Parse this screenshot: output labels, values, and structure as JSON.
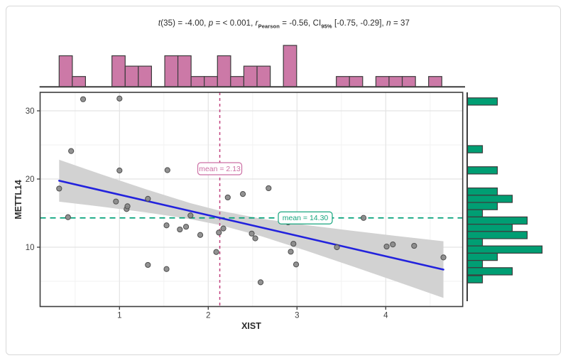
{
  "figure": {
    "background": "#ffffff",
    "card_border_color": "#d8d8d8"
  },
  "title": {
    "plain": "t(35) = -4.00, p = < 0.001, rPearson = -0.56, CI95% [-0.75, -0.29], n = 37",
    "segments": [
      {
        "text": "t",
        "style": "italic"
      },
      {
        "text": "(35) = -4.00, ",
        "style": "plain"
      },
      {
        "text": "p",
        "style": "italic"
      },
      {
        "text": " = < 0.001, ",
        "style": "plain"
      },
      {
        "text": "r",
        "style": "italic"
      },
      {
        "text": "Pearson",
        "style": "sub"
      },
      {
        "text": " = -0.56, CI",
        "style": "plain"
      },
      {
        "text": "95%",
        "style": "sub"
      },
      {
        "text": " [-0.75, -0.29], ",
        "style": "plain"
      },
      {
        "text": "n",
        "style": "italic"
      },
      {
        "text": " = 37",
        "style": "plain"
      }
    ]
  },
  "chart_data": {
    "type": "scatter",
    "subtype": "scatter_with_regression_and_marginal_histograms",
    "xlabel": "XIST",
    "ylabel": "METTL14",
    "x_ticks": [
      1,
      2,
      3,
      4
    ],
    "y_ticks": [
      10,
      20,
      30
    ],
    "xlim": [
      0.11,
      4.87
    ],
    "ylim": [
      1.3,
      32.7
    ],
    "n": 37,
    "grid": true,
    "point_style": {
      "fill": "#868686",
      "stroke": "#4e4e4e",
      "radius": 3.6,
      "opacity": 0.9
    },
    "points": [
      [
        0.32,
        18.6
      ],
      [
        0.42,
        14.4
      ],
      [
        0.455,
        24.1
      ],
      [
        0.59,
        31.7
      ],
      [
        0.96,
        16.7
      ],
      [
        1.0,
        31.8
      ],
      [
        1.0,
        21.25
      ],
      [
        1.08,
        15.6
      ],
      [
        1.09,
        16.0
      ],
      [
        1.32,
        17.1
      ],
      [
        1.32,
        7.4
      ],
      [
        1.53,
        13.2
      ],
      [
        1.53,
        6.8
      ],
      [
        1.54,
        21.3
      ],
      [
        1.68,
        12.6
      ],
      [
        1.75,
        13.0
      ],
      [
        1.8,
        14.65
      ],
      [
        1.91,
        11.8
      ],
      [
        2.09,
        9.3
      ],
      [
        2.12,
        12.15
      ],
      [
        2.17,
        12.75
      ],
      [
        2.22,
        17.3
      ],
      [
        2.39,
        17.8
      ],
      [
        2.49,
        12.0
      ],
      [
        2.53,
        11.3
      ],
      [
        2.59,
        4.86
      ],
      [
        2.68,
        18.65
      ],
      [
        2.9,
        13.65
      ],
      [
        2.93,
        9.34
      ],
      [
        2.96,
        10.5
      ],
      [
        2.99,
        7.47
      ],
      [
        3.45,
        10.0
      ],
      [
        3.75,
        14.3
      ],
      [
        4.01,
        10.1
      ],
      [
        4.08,
        10.4
      ],
      [
        4.32,
        10.2
      ],
      [
        4.65,
        8.5
      ]
    ],
    "regression": {
      "x1": 0.32,
      "y1": 19.75,
      "x2": 4.65,
      "y2": 6.72,
      "color": "#2222dd",
      "width": 2.6
    },
    "confidence_band": {
      "color": "#d2d2d2",
      "points": [
        [
          0.32,
          16.68,
          22.82
        ],
        [
          0.8,
          15.94,
          20.66
        ],
        [
          1.3,
          15.11,
          18.49
        ],
        [
          1.8,
          14.12,
          16.46
        ],
        [
          2.13,
          13.25,
          15.35
        ],
        [
          2.6,
          11.6,
          14.18
        ],
        [
          3.1,
          9.51,
          13.25
        ],
        [
          3.6,
          7.31,
          12.45
        ],
        [
          4.1,
          5.06,
          11.68
        ],
        [
          4.65,
          2.57,
          10.87
        ]
      ]
    },
    "mean_x_line": {
      "value": 2.13,
      "label": "mean = 2.13",
      "line_color": "#c2417e",
      "label_color": "#cc6fa4"
    },
    "mean_y_line": {
      "value": 14.3,
      "label": "mean = 14.30",
      "line_color": "#00a077",
      "label_color": "#17a57e"
    },
    "x_marginal_histogram": {
      "fill": "#CC79A7",
      "stroke": "#3c3c3c",
      "binwidth": 0.1488,
      "bars": [
        [
          0.32,
          3
        ],
        [
          0.468,
          1
        ],
        [
          0.915,
          3
        ],
        [
          1.064,
          2
        ],
        [
          1.212,
          2
        ],
        [
          1.51,
          3
        ],
        [
          1.658,
          3
        ],
        [
          1.807,
          1
        ],
        [
          1.955,
          1
        ],
        [
          2.104,
          3
        ],
        [
          2.252,
          1
        ],
        [
          2.401,
          2
        ],
        [
          2.55,
          2
        ],
        [
          2.847,
          4
        ],
        [
          3.443,
          1
        ],
        [
          3.591,
          1
        ],
        [
          3.889,
          1
        ],
        [
          4.037,
          1
        ],
        [
          4.186,
          1
        ],
        [
          4.483,
          1
        ]
      ]
    },
    "y_marginal_histogram": {
      "fill": "#009E73",
      "stroke": "#3c3c3c",
      "binwidth": 1.0625,
      "bars": [
        [
          31.9,
          2
        ],
        [
          24.9,
          1
        ],
        [
          21.8,
          2
        ],
        [
          18.69,
          2
        ],
        [
          17.62,
          3
        ],
        [
          16.56,
          2
        ],
        [
          15.5,
          1
        ],
        [
          14.44,
          4
        ],
        [
          13.37,
          3
        ],
        [
          12.31,
          4
        ],
        [
          11.25,
          1
        ],
        [
          10.19,
          5
        ],
        [
          9.12,
          2
        ],
        [
          8.06,
          1
        ],
        [
          7.0,
          3
        ],
        [
          5.83,
          1
        ]
      ]
    },
    "axis_style": {
      "border_color": "#3d3d3d",
      "tick_color": "#3d3d3d",
      "label_color": "#3f3f3f",
      "title_color": "#2b2b2b",
      "grid_major": "#e4e4e4",
      "grid_minor": "#f2f2f2"
    }
  }
}
